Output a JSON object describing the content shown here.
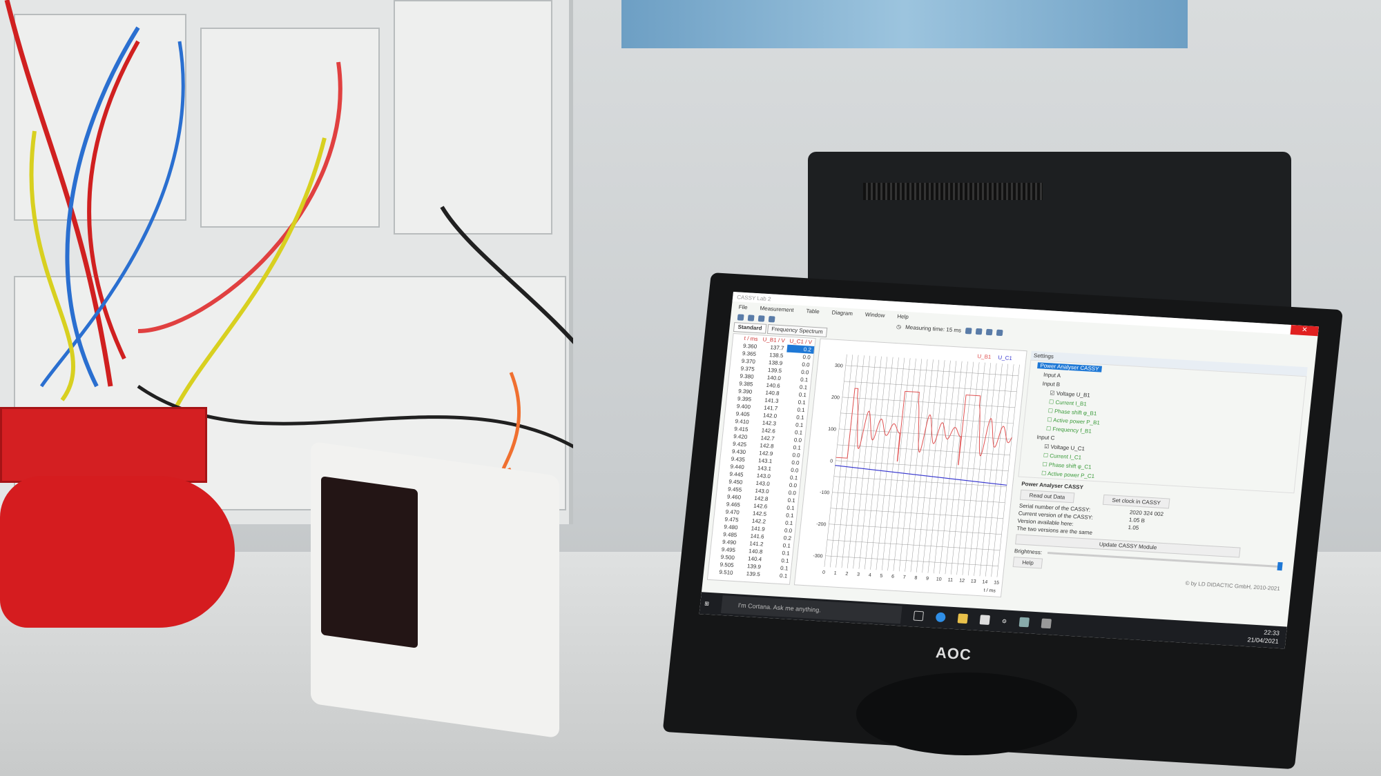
{
  "app": {
    "title": "CASSY Lab 2",
    "menu": [
      "File",
      "Measurement",
      "Table",
      "Diagram",
      "Window",
      "Help"
    ],
    "measuring_time": "Measuring time: 15 ms",
    "tabs": [
      "Standard",
      "Frequency Spectrum"
    ],
    "table": {
      "headers": [
        "t / ms",
        "U_B1 / V",
        "U_C1 / V"
      ],
      "rows": [
        [
          "9.360",
          "137.7",
          "0.2"
        ],
        [
          "9.365",
          "138.5",
          "0.0"
        ],
        [
          "9.370",
          "138.9",
          "0.0"
        ],
        [
          "9.375",
          "139.5",
          "0.0"
        ],
        [
          "9.380",
          "140.0",
          "0.1"
        ],
        [
          "9.385",
          "140.6",
          "0.1"
        ],
        [
          "9.390",
          "140.8",
          "0.1"
        ],
        [
          "9.395",
          "141.3",
          "0.1"
        ],
        [
          "9.400",
          "141.7",
          "0.1"
        ],
        [
          "9.405",
          "142.0",
          "0.1"
        ],
        [
          "9.410",
          "142.3",
          "0.1"
        ],
        [
          "9.415",
          "142.6",
          "0.1"
        ],
        [
          "9.420",
          "142.7",
          "0.0"
        ],
        [
          "9.425",
          "142.8",
          "0.1"
        ],
        [
          "9.430",
          "142.9",
          "0.0"
        ],
        [
          "9.435",
          "143.1",
          "0.0"
        ],
        [
          "9.440",
          "143.1",
          "0.0"
        ],
        [
          "9.445",
          "143.0",
          "0.1"
        ],
        [
          "9.450",
          "143.0",
          "0.0"
        ],
        [
          "9.455",
          "143.0",
          "0.0"
        ],
        [
          "9.460",
          "142.8",
          "0.1"
        ],
        [
          "9.465",
          "142.6",
          "0.1"
        ],
        [
          "9.470",
          "142.5",
          "0.1"
        ],
        [
          "9.475",
          "142.2",
          "0.1"
        ],
        [
          "9.480",
          "141.9",
          "0.0"
        ],
        [
          "9.485",
          "141.6",
          "0.2"
        ],
        [
          "9.490",
          "141.2",
          "0.1"
        ],
        [
          "9.495",
          "140.8",
          "0.1"
        ],
        [
          "9.500",
          "140.4",
          "0.1"
        ],
        [
          "9.505",
          "139.9",
          "0.1"
        ],
        [
          "9.510",
          "139.5",
          "0.1"
        ]
      ]
    },
    "chart": {
      "legend": [
        "U_B1",
        "U_C1"
      ],
      "yticks": [
        "300",
        "200",
        "100",
        "0",
        "-100",
        "-200",
        "-300"
      ],
      "xticks": [
        "0",
        "1",
        "2",
        "3",
        "4",
        "5",
        "6",
        "7",
        "8",
        "9",
        "10",
        "11",
        "12",
        "13",
        "14",
        "15"
      ],
      "xlabel": "t / ms",
      "colors": {
        "U_B1": "#e05050",
        "U_C1": "#3a3ad0"
      }
    },
    "settings": {
      "header": "Settings",
      "root": "Power Analyser CASSY",
      "inputA": "Input A",
      "inputB": "Input B",
      "itemsB": [
        "Voltage U_B1",
        "Current I_B1",
        "Phase shift φ_B1",
        "Active power P_B1",
        "Frequency f_B1"
      ],
      "inputC": "Input C",
      "itemsC": [
        "Voltage U_C1",
        "Current I_C1",
        "Phase shift φ_C1",
        "Active power P_C1"
      ],
      "checkedB": [
        true,
        false,
        false,
        false,
        false
      ],
      "checkedC": [
        true,
        false,
        false,
        false
      ],
      "panel_title": "Power Analyser CASSY",
      "read_out": "Read out Data",
      "set_clock": "Set clock in CASSY",
      "serial_label": "Serial number of the CASSY:",
      "serial": "2020 324 002",
      "current_label": "Current version of the CASSY:",
      "current": "1.05 B",
      "available_label": "Version available here:",
      "available": "1.05",
      "same": "The two versions are the same",
      "update": "Update CASSY Module",
      "brightness": "Brightness:",
      "help": "Help",
      "copyright": "© by LD DIDACTIC GmbH, 2010-2021"
    },
    "taskbar": {
      "cortana": "I'm Cortana. Ask me anything.",
      "time": "22:33",
      "date": "21/04/2021"
    }
  },
  "monitor_brand": "AOC"
}
